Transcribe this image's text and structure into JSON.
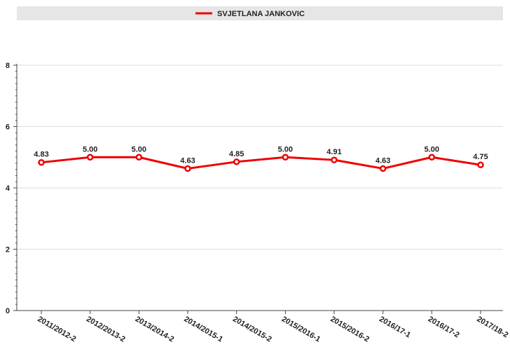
{
  "chart_data": {
    "type": "line",
    "title": "",
    "xlabel": "",
    "ylabel": "",
    "categories": [
      "2011/2012-2",
      "2012/2013-2",
      "2013/2014-2",
      "2014/2015-1",
      "2014/2015-2",
      "2015/2016-1",
      "2015/2016-2",
      "2016/17-1",
      "2016/17-2",
      "2017/18-2"
    ],
    "series": [
      {
        "name": "SVJETLANA JANKOVIC",
        "values": [
          4.83,
          5.0,
          5.0,
          4.63,
          4.85,
          5.0,
          4.91,
          4.63,
          5.0,
          4.75
        ],
        "labels": [
          "4.83",
          "5.00",
          "5.00",
          "4.63",
          "4.85",
          "5.00",
          "4.91",
          "4.63",
          "5.00",
          "4.75"
        ],
        "color": "#ee0000"
      }
    ],
    "ylim": [
      0,
      8
    ],
    "yticks": [
      "0",
      "2",
      "4",
      "6",
      "8"
    ],
    "grid": true,
    "legend_position": "top",
    "colors": {
      "grid": "#dddddd",
      "axis": "#444444",
      "legend_bg": "#e6e6e6"
    }
  }
}
